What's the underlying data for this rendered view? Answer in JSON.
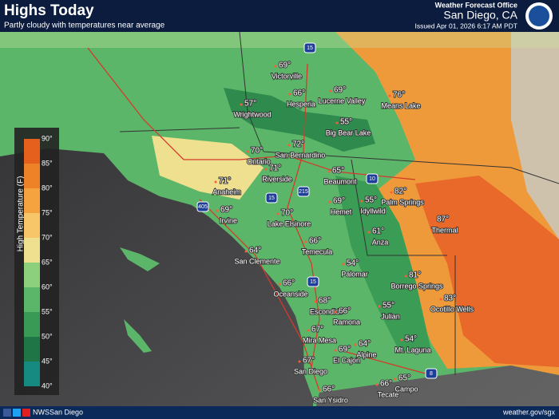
{
  "header": {
    "title": "Highs Today",
    "subtitle": "Partly cloudy with temperatures near average",
    "office": "Weather Forecast Office",
    "location": "San Diego, CA",
    "issued": "Issued Apr 01, 2026 6:17 AM PDT"
  },
  "legend": {
    "title": "High Temperature (F)",
    "ticks": [
      "90°",
      "85°",
      "80°",
      "75°",
      "70°",
      "65°",
      "60°",
      "55°",
      "50°",
      "45°",
      "40°"
    ],
    "colors": [
      "#e4601c",
      "#ee8226",
      "#f4a33f",
      "#f6c668",
      "#efe08f",
      "#8ccf7c",
      "#5bb669",
      "#389a55",
      "#1f7545",
      "#168a80"
    ]
  },
  "cities": [
    {
      "temp": "69°",
      "name": "Victorville"
    },
    {
      "temp": "66°",
      "name": "Hesperia"
    },
    {
      "temp": "69°",
      "name": "Lucerne Valley"
    },
    {
      "temp": "76°",
      "name": "Means Lake"
    },
    {
      "temp": "57°",
      "name": "Wrightwood"
    },
    {
      "temp": "55°",
      "name": "Big Bear Lake"
    },
    {
      "temp": "70°",
      "name": "Ontario"
    },
    {
      "temp": "72°",
      "name": "San Bernardino"
    },
    {
      "temp": "71°",
      "name": "Riverside"
    },
    {
      "temp": "65°",
      "name": "Beaumont"
    },
    {
      "temp": "71°",
      "name": "Anaheim"
    },
    {
      "temp": "69°",
      "name": "Hemet"
    },
    {
      "temp": "55°",
      "name": "Idyllwild"
    },
    {
      "temp": "82°",
      "name": "Palm Springs"
    },
    {
      "temp": "69°",
      "name": "Irvine"
    },
    {
      "temp": "70°",
      "name": "Lake Elsinore"
    },
    {
      "temp": "87°",
      "name": "Thermal"
    },
    {
      "temp": "61°",
      "name": "Anza"
    },
    {
      "temp": "66°",
      "name": "Temecula"
    },
    {
      "temp": "64°",
      "name": "San Clemente"
    },
    {
      "temp": "54°",
      "name": "Palomar"
    },
    {
      "temp": "81°",
      "name": "Borrego Springs"
    },
    {
      "temp": "66°",
      "name": "Oceanside"
    },
    {
      "temp": "83°",
      "name": "Ocotillo Wells"
    },
    {
      "temp": "68°",
      "name": "Escondido"
    },
    {
      "temp": "66°",
      "name": "Ramona"
    },
    {
      "temp": "55°",
      "name": "Julian"
    },
    {
      "temp": "67°",
      "name": "Mira Mesa"
    },
    {
      "temp": "54°",
      "name": "Mt. Laguna"
    },
    {
      "temp": "69°",
      "name": "El Cajon"
    },
    {
      "temp": "64°",
      "name": "Alpine"
    },
    {
      "temp": "67°",
      "name": "San Diego"
    },
    {
      "temp": "66°",
      "name": "San Ysidro"
    },
    {
      "temp": "66°",
      "name": "Tecate"
    },
    {
      "temp": "65°",
      "name": "Campo"
    }
  ],
  "highways": [
    "15",
    "10",
    "215",
    "15",
    "405",
    "15",
    "8"
  ],
  "footer": {
    "social": "NWSSan Diego",
    "url": "weather.gov/sgx"
  }
}
